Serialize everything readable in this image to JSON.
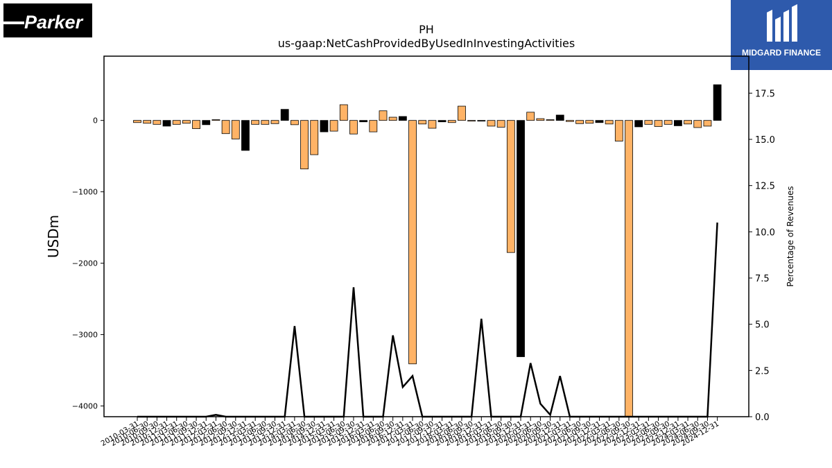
{
  "logos": {
    "left_text": "Parker",
    "right_text": "MIDGARD FINANCE"
  },
  "colors": {
    "bar_positive_even": "#000000",
    "bar_light": "#ffb366",
    "line": "#000000",
    "right_logo_bg": "#2e5aac"
  },
  "chart_data": {
    "type": "bar",
    "title": "PH",
    "subtitle": "us-gaap:NetCashProvidedByUsedInInvestingActivities",
    "ylabel": "USDm",
    "y2label": "Percentage of Revenues",
    "ylim": [
      -4150,
      900
    ],
    "y2lim": [
      0,
      19.5
    ],
    "yticks": [
      -4000,
      -3000,
      -2000,
      -1000,
      0
    ],
    "y2ticks": [
      0.0,
      2.5,
      5.0,
      7.5,
      10.0,
      12.5,
      15.0,
      17.5
    ],
    "ytick_labels": [
      "−4000",
      "−3000",
      "−2000",
      "−1000",
      "0"
    ],
    "y2tick_labels": [
      "0.0",
      "2.5",
      "5.0",
      "7.5",
      "10.0",
      "12.5",
      "15.0",
      "17.5"
    ],
    "categories": [
      "2010-03-31",
      "2010-06-30",
      "2010-09-30",
      "2010-12-31",
      "2011-03-31",
      "2011-06-30",
      "2011-09-30",
      "2011-12-31",
      "2012-03-31",
      "2012-06-30",
      "2012-09-30",
      "2012-12-31",
      "2013-03-31",
      "2013-06-30",
      "2013-09-30",
      "2013-12-31",
      "2014-03-31",
      "2014-06-30",
      "2014-09-30",
      "2014-12-31",
      "2015-03-31",
      "2015-06-30",
      "2015-09-30",
      "2015-12-31",
      "2016-03-31",
      "2016-06-30",
      "2016-09-30",
      "2016-12-31",
      "2017-03-31",
      "2017-06-30",
      "2017-09-30",
      "2017-12-31",
      "2018-03-31",
      "2018-06-30",
      "2018-09-30",
      "2018-12-31",
      "2019-03-31",
      "2019-06-30",
      "2019-09-30",
      "2019-12-31",
      "2020-03-31",
      "2020-06-30",
      "2020-09-30",
      "2020-12-31",
      "2021-03-31",
      "2021-06-30",
      "2021-09-30",
      "2021-12-31",
      "2022-03-31",
      "2022-06-30",
      "2022-09-30",
      "2022-12-31",
      "2023-03-31",
      "2023-06-30",
      "2023-09-30",
      "2023-12-31",
      "2024-03-31",
      "2024-06-30",
      "2024-09-30",
      "2024-12-31"
    ],
    "values": [
      -30,
      -40,
      -55,
      -80,
      -55,
      -40,
      -115,
      -60,
      10,
      -185,
      -260,
      -420,
      -55,
      -55,
      -45,
      155,
      -60,
      -680,
      -480,
      -160,
      -150,
      220,
      -190,
      -20,
      -160,
      135,
      45,
      55,
      -3410,
      -50,
      -110,
      -20,
      -30,
      200,
      -10,
      -10,
      -80,
      -95,
      -1850,
      -3310,
      115,
      25,
      10,
      75,
      -15,
      -45,
      -40,
      -30,
      -50,
      -290,
      -4200,
      -90,
      -55,
      -85,
      -55,
      -75,
      -50,
      -100,
      -80,
      500
    ],
    "bar_colors": [
      "light",
      "light",
      "light",
      "dark",
      "light",
      "light",
      "light",
      "dark",
      "light",
      "light",
      "light",
      "dark",
      "light",
      "light",
      "light",
      "dark",
      "light",
      "light",
      "light",
      "dark",
      "light",
      "light",
      "light",
      "dark",
      "light",
      "light",
      "light",
      "dark",
      "light",
      "light",
      "light",
      "dark",
      "light",
      "light",
      "light",
      "dark",
      "light",
      "light",
      "light",
      "dark",
      "light",
      "light",
      "light",
      "dark",
      "light",
      "light",
      "light",
      "dark",
      "light",
      "light",
      "light",
      "dark",
      "light",
      "light",
      "light",
      "dark",
      "light",
      "light",
      "light",
      "dark"
    ],
    "pct_of_revenues": [
      0,
      0,
      0,
      0,
      0,
      0,
      0,
      0,
      0.1,
      0,
      0,
      0,
      0,
      0,
      0,
      0,
      4.9,
      0,
      0,
      0,
      0,
      0,
      7.0,
      0,
      0,
      0,
      4.4,
      1.6,
      2.2,
      0,
      0,
      0,
      0,
      0,
      0,
      5.3,
      0,
      0,
      0,
      0,
      2.9,
      0.7,
      0.1,
      2.2,
      0,
      0,
      0,
      0,
      0,
      0,
      0,
      0,
      0,
      0,
      0,
      0,
      0,
      0,
      0,
      10.5
    ]
  }
}
